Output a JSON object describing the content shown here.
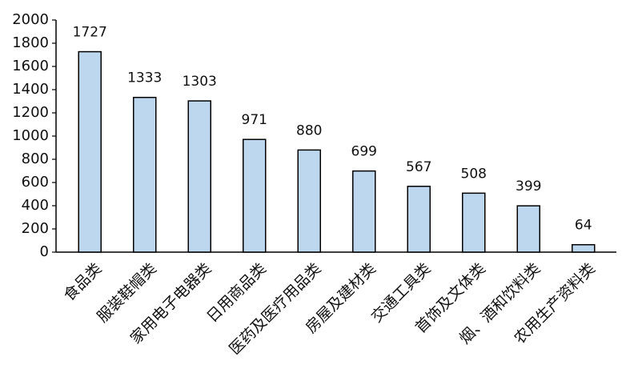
{
  "chart_data": {
    "type": "bar",
    "categories": [
      "食品类",
      "服装鞋帽类",
      "家用电子电器类",
      "日用商品类",
      "医药及医疗用品类",
      "房屋及建材类",
      "交通工具类",
      "首饰及文体类",
      "烟、酒和饮料类",
      "农用生产资料类"
    ],
    "values": [
      1727,
      1333,
      1303,
      971,
      880,
      699,
      567,
      508,
      399,
      64
    ],
    "color": "#bdd7ee",
    "ylim": [
      0,
      2000
    ],
    "yticks": [
      0,
      200,
      400,
      600,
      800,
      1000,
      1200,
      1400,
      1600,
      1800,
      2000
    ],
    "grid": false
  }
}
